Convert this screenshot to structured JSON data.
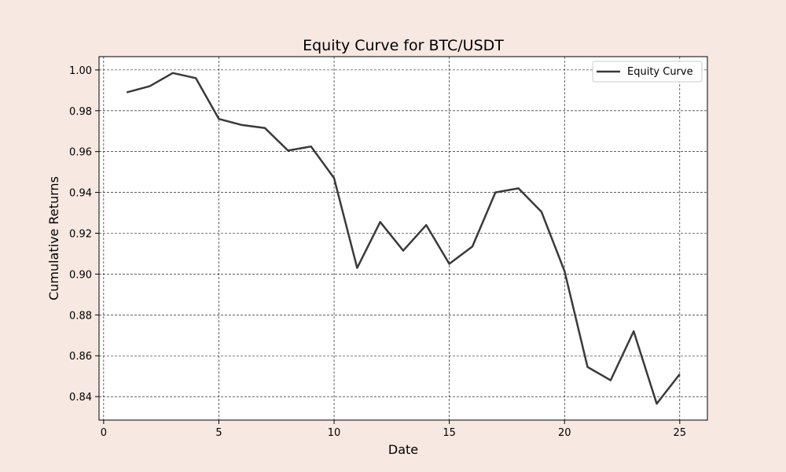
{
  "chart_data": {
    "type": "line",
    "title": "Equity Curve for BTC/USDT",
    "xlabel": "Date",
    "ylabel": "Cumulative Returns",
    "xlim": [
      -0.2,
      26.2
    ],
    "ylim": [
      0.8285,
      1.0065
    ],
    "xticks": [
      0,
      5,
      10,
      15,
      20,
      25
    ],
    "yticks": [
      0.84,
      0.86,
      0.88,
      0.9,
      0.92,
      0.94,
      0.96,
      0.98,
      1.0
    ],
    "ytick_labels": [
      "0.84",
      "0.86",
      "0.88",
      "0.90",
      "0.92",
      "0.94",
      "0.96",
      "0.98",
      "1.00"
    ],
    "grid": true,
    "legend": "top-right",
    "series": [
      {
        "name": "Equity Curve",
        "color": "#3a3a3a",
        "x": [
          1,
          2,
          3,
          4,
          5,
          6,
          7,
          8,
          9,
          10,
          11,
          12,
          13,
          14,
          15,
          16,
          17,
          18,
          19,
          20,
          21,
          22,
          23,
          24,
          25
        ],
        "values": [
          0.989,
          0.992,
          0.9985,
          0.996,
          0.976,
          0.973,
          0.9715,
          0.9605,
          0.9625,
          0.947,
          0.903,
          0.9255,
          0.9115,
          0.924,
          0.905,
          0.9135,
          0.94,
          0.942,
          0.9305,
          0.9015,
          0.8545,
          0.848,
          0.872,
          0.8365,
          0.851
        ]
      }
    ]
  }
}
